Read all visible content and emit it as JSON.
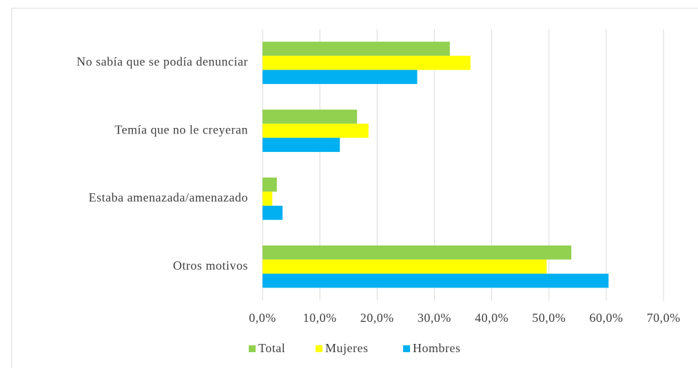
{
  "chart_data": {
    "type": "bar",
    "orientation": "horizontal",
    "categories": [
      "No sabía que se podía denunciar",
      "Temía que no le creyeran",
      "Estaba amenazada/amenazado",
      "Otros motivos"
    ],
    "series": [
      {
        "name": "Total",
        "color": "#92d050",
        "values": [
          32.7,
          16.5,
          2.5,
          53.9
        ]
      },
      {
        "name": "Mujeres",
        "color": "#ffff00",
        "values": [
          36.3,
          18.5,
          1.7,
          49.6
        ]
      },
      {
        "name": "Hombres",
        "color": "#00b0f0",
        "values": [
          27.0,
          13.5,
          3.5,
          60.4
        ]
      }
    ],
    "xlim": [
      0,
      70
    ],
    "xticks": [
      {
        "value": 0,
        "label": "0,0%"
      },
      {
        "value": 10,
        "label": "10,0%"
      },
      {
        "value": 20,
        "label": "20,0%"
      },
      {
        "value": 30,
        "label": "30,0%"
      },
      {
        "value": 40,
        "label": "40,0%"
      },
      {
        "value": 50,
        "label": "50,0%"
      },
      {
        "value": 60,
        "label": "60,0%"
      },
      {
        "value": 70,
        "label": "70,0%"
      }
    ],
    "grid": true,
    "legend": "bottom"
  }
}
